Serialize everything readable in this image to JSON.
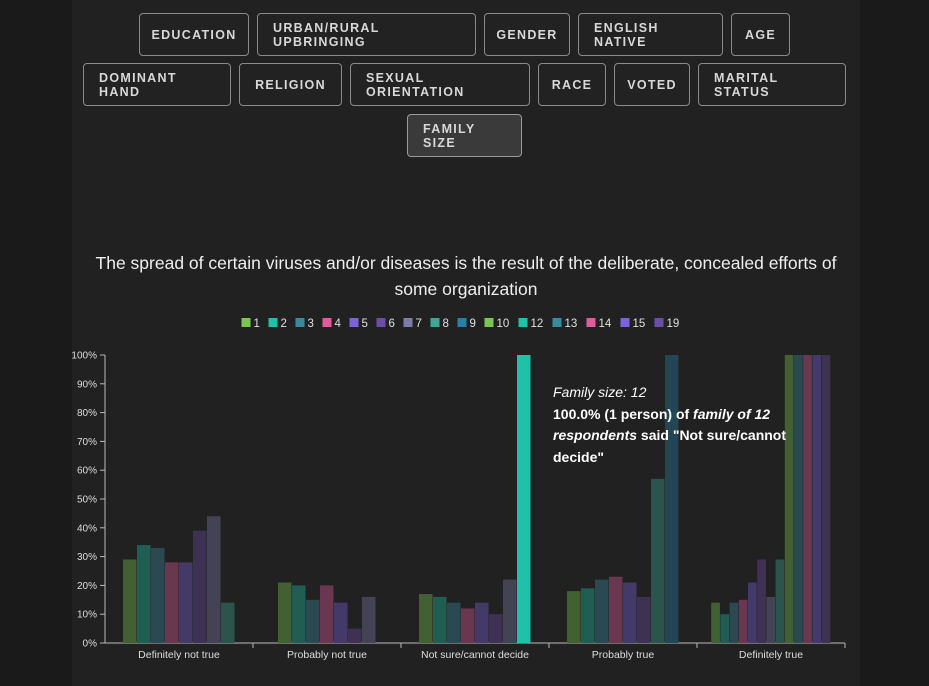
{
  "filters": [
    {
      "label": "EDUCATION",
      "active": false
    },
    {
      "label": "URBAN/RURAL UPBRINGING",
      "active": false
    },
    {
      "label": "GENDER",
      "active": false
    },
    {
      "label": "ENGLISH NATIVE",
      "active": false
    },
    {
      "label": "AGE",
      "active": false
    },
    {
      "label": "DOMINANT HAND",
      "active": false
    },
    {
      "label": "RELIGION",
      "active": false
    },
    {
      "label": "SEXUAL ORIENTATION",
      "active": false
    },
    {
      "label": "RACE",
      "active": false
    },
    {
      "label": "VOTED",
      "active": false
    },
    {
      "label": "MARITAL STATUS",
      "active": false
    },
    {
      "label": "FAMILY SIZE",
      "active": true
    }
  ],
  "tooltip": {
    "line1": "Family size: 12",
    "pct": "100.0%",
    "count": "(1 person) of",
    "group": "family of 12 respondents",
    "said": "said",
    "answer": "\"Not sure/cannot decide\""
  },
  "chart_data": {
    "type": "bar",
    "title": "The spread of certain viruses and/or diseases is the result of the deliberate, concealed efforts of some organization",
    "xlabel": "",
    "ylabel": "",
    "ylim": [
      0,
      100
    ],
    "y_ticks": [
      "0%",
      "10%",
      "20%",
      "30%",
      "40%",
      "50%",
      "60%",
      "70%",
      "80%",
      "90%",
      "100%"
    ],
    "categories": [
      "Definitely not true",
      "Probably not true",
      "Not sure/cannot decide",
      "Probably true",
      "Definitely true"
    ],
    "legend_position": "top-center",
    "highlighted_series": "12",
    "series": [
      {
        "name": "1",
        "color": "#7ac74f",
        "values": [
          29,
          21,
          17,
          18,
          14
        ]
      },
      {
        "name": "2",
        "color": "#1fc2a8",
        "values": [
          34,
          20,
          16,
          19,
          10
        ]
      },
      {
        "name": "3",
        "color": "#3a8a9e",
        "values": [
          33,
          15,
          14,
          22,
          14
        ]
      },
      {
        "name": "4",
        "color": "#e05a9c",
        "values": [
          28,
          20,
          12,
          23,
          15
        ]
      },
      {
        "name": "5",
        "color": "#7a62e0",
        "values": [
          28,
          14,
          14,
          21,
          21
        ]
      },
      {
        "name": "6",
        "color": "#6a4ea8",
        "values": [
          39,
          5,
          10,
          16,
          29
        ]
      },
      {
        "name": "7",
        "color": "#7c7aa8",
        "values": [
          44,
          16,
          22,
          0,
          16
        ]
      },
      {
        "name": "8",
        "color": "#3aa893",
        "values": [
          14,
          0,
          0,
          57,
          29
        ]
      },
      {
        "name": "9",
        "color": "#2a7fa8",
        "values": [
          0,
          0,
          0,
          100,
          0
        ]
      },
      {
        "name": "10",
        "color": "#7ac74f",
        "values": [
          0,
          0,
          0,
          0,
          100
        ]
      },
      {
        "name": "12",
        "color": "#1fc2a8",
        "values": [
          0,
          0,
          100,
          0,
          0
        ]
      },
      {
        "name": "13",
        "color": "#3a8a9e",
        "values": [
          0,
          0,
          0,
          0,
          100
        ]
      },
      {
        "name": "14",
        "color": "#e05a9c",
        "values": [
          0,
          0,
          0,
          0,
          100
        ]
      },
      {
        "name": "15",
        "color": "#7a62e0",
        "values": [
          0,
          0,
          0,
          0,
          100
        ]
      },
      {
        "name": "19",
        "color": "#6a4ea8",
        "values": [
          0,
          0,
          0,
          0,
          100
        ]
      }
    ]
  }
}
